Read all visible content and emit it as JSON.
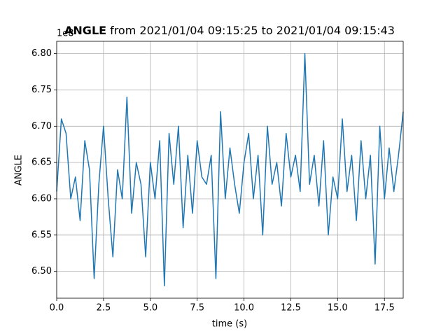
{
  "chart_data": {
    "type": "line",
    "title_parts": [
      "ANGLE",
      "from 2021/01/04 09:15:25 to 2021/01/04 09:15:43"
    ],
    "xlabel": "time (s)",
    "ylabel": "ANGLE",
    "offset_text": "1e8",
    "x": [
      0,
      0.25,
      0.5,
      0.75,
      1,
      1.25,
      1.5,
      1.75,
      2,
      2.25,
      2.5,
      2.75,
      3,
      3.25,
      3.5,
      3.75,
      4,
      4.25,
      4.5,
      4.75,
      5,
      5.25,
      5.5,
      5.75,
      6,
      6.25,
      6.5,
      6.75,
      7,
      7.25,
      7.5,
      7.75,
      8,
      8.25,
      8.5,
      8.75,
      9,
      9.25,
      9.5,
      9.75,
      10,
      10.25,
      10.5,
      10.75,
      11,
      11.25,
      11.5,
      11.75,
      12,
      12.25,
      12.5,
      12.75,
      13,
      13.25,
      13.5,
      13.75,
      14,
      14.25,
      14.5,
      14.75,
      15,
      15.25,
      15.5,
      15.75,
      16,
      16.25,
      16.5,
      16.75,
      17,
      17.25,
      17.5,
      17.75,
      18,
      18.25,
      18.5
    ],
    "series": [
      {
        "name": "ANGLE",
        "color": "#1f77b4",
        "values": [
          6.61,
          6.71,
          6.69,
          6.6,
          6.63,
          6.57,
          6.68,
          6.64,
          6.49,
          6.62,
          6.7,
          6.6,
          6.52,
          6.64,
          6.6,
          6.74,
          6.58,
          6.65,
          6.62,
          6.52,
          6.65,
          6.6,
          6.68,
          6.48,
          6.69,
          6.62,
          6.7,
          6.56,
          6.66,
          6.58,
          6.68,
          6.63,
          6.62,
          6.66,
          6.49,
          6.72,
          6.6,
          6.67,
          6.62,
          6.58,
          6.65,
          6.69,
          6.6,
          6.66,
          6.55,
          6.7,
          6.62,
          6.65,
          6.59,
          6.69,
          6.63,
          6.66,
          6.61,
          6.8,
          6.62,
          6.66,
          6.59,
          6.68,
          6.55,
          6.63,
          6.6,
          6.71,
          6.61,
          6.66,
          6.57,
          6.68,
          6.6,
          6.66,
          6.51,
          6.7,
          6.6,
          6.67,
          6.61,
          6.66,
          6.72
        ]
      }
    ],
    "xlim": [
      0,
      18.5
    ],
    "ylim": [
      6.463,
      6.817
    ],
    "xticks": [
      {
        "value": 0,
        "label": "0.0"
      },
      2.5,
      {
        "value": 5,
        "label": "5.0"
      },
      7.5,
      {
        "value": 10,
        "label": "10.0"
      },
      12.5,
      {
        "value": 15,
        "label": "15.0"
      },
      17.5
    ],
    "yticks": [
      {
        "value": 6.5,
        "label": "6.50"
      },
      6.55,
      {
        "value": 6.6,
        "label": "6.60"
      },
      6.65,
      {
        "value": 6.7,
        "label": "6.70"
      },
      6.75,
      {
        "value": 6.8,
        "label": "6.80"
      }
    ],
    "grid": true
  }
}
